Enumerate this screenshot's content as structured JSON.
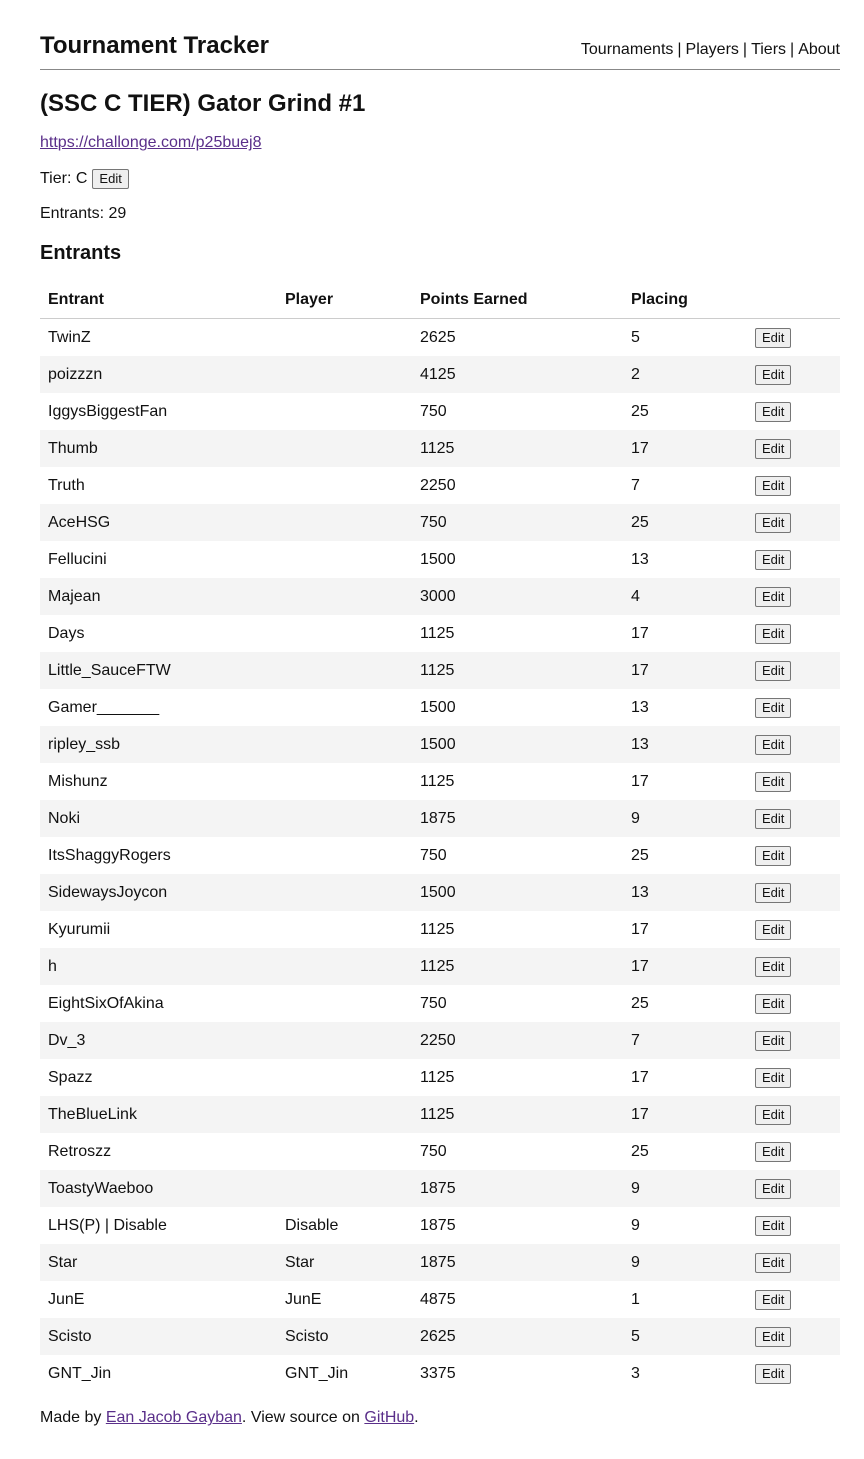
{
  "site": {
    "title": "Tournament Tracker",
    "nav": [
      "Tournaments",
      "Players",
      "Tiers",
      "About"
    ],
    "nav_separator": "|"
  },
  "tournament": {
    "title": "(SSC C TIER) Gator Grind #1",
    "url": "https://challonge.com/p25buej8",
    "tier_label": "Tier:",
    "tier_value": "C",
    "edit_label": "Edit",
    "entrants_label": "Entrants:",
    "entrants_count": "29"
  },
  "entrants_section": {
    "heading": "Entrants",
    "columns": [
      "Entrant",
      "Player",
      "Points Earned",
      "Placing",
      ""
    ],
    "edit_label": "Edit",
    "rows": [
      {
        "entrant": "TwinZ",
        "player": "",
        "points": "2625",
        "placing": "5"
      },
      {
        "entrant": "poizzzn",
        "player": "",
        "points": "4125",
        "placing": "2"
      },
      {
        "entrant": "IggysBiggestFan",
        "player": "",
        "points": "750",
        "placing": "25"
      },
      {
        "entrant": "Thumb",
        "player": "",
        "points": "1125",
        "placing": "17"
      },
      {
        "entrant": "Truth",
        "player": "",
        "points": "2250",
        "placing": "7"
      },
      {
        "entrant": "AceHSG",
        "player": "",
        "points": "750",
        "placing": "25"
      },
      {
        "entrant": "Fellucini",
        "player": "",
        "points": "1500",
        "placing": "13"
      },
      {
        "entrant": "Majean",
        "player": "",
        "points": "3000",
        "placing": "4"
      },
      {
        "entrant": "Days",
        "player": "",
        "points": "1125",
        "placing": "17"
      },
      {
        "entrant": "Little_SauceFTW",
        "player": "",
        "points": "1125",
        "placing": "17"
      },
      {
        "entrant": "Gamer_______",
        "player": "",
        "points": "1500",
        "placing": "13"
      },
      {
        "entrant": "ripley_ssb",
        "player": "",
        "points": "1500",
        "placing": "13"
      },
      {
        "entrant": "Mishunz",
        "player": "",
        "points": "1125",
        "placing": "17"
      },
      {
        "entrant": "Noki",
        "player": "",
        "points": "1875",
        "placing": "9"
      },
      {
        "entrant": "ItsShaggyRogers",
        "player": "",
        "points": "750",
        "placing": "25"
      },
      {
        "entrant": "SidewaysJoycon",
        "player": "",
        "points": "1500",
        "placing": "13"
      },
      {
        "entrant": "Kyurumii",
        "player": "",
        "points": "1125",
        "placing": "17"
      },
      {
        "entrant": "h",
        "player": "",
        "points": "1125",
        "placing": "17"
      },
      {
        "entrant": "EightSixOfAkina",
        "player": "",
        "points": "750",
        "placing": "25"
      },
      {
        "entrant": "Dv_3",
        "player": "",
        "points": "2250",
        "placing": "7"
      },
      {
        "entrant": "Spazz",
        "player": "",
        "points": "1125",
        "placing": "17"
      },
      {
        "entrant": "TheBlueLink",
        "player": "",
        "points": "1125",
        "placing": "17"
      },
      {
        "entrant": "Retroszz",
        "player": "",
        "points": "750",
        "placing": "25"
      },
      {
        "entrant": "ToastyWaeboo",
        "player": "",
        "points": "1875",
        "placing": "9"
      },
      {
        "entrant": "LHS(P) | Disable",
        "player": "Disable",
        "points": "1875",
        "placing": "9"
      },
      {
        "entrant": "Star",
        "player": "Star",
        "points": "1875",
        "placing": "9"
      },
      {
        "entrant": "JunE",
        "player": "JunE",
        "points": "4875",
        "placing": "1"
      },
      {
        "entrant": "Scisto",
        "player": "Scisto",
        "points": "2625",
        "placing": "5"
      },
      {
        "entrant": "GNT_Jin",
        "player": "GNT_Jin",
        "points": "3375",
        "placing": "3"
      }
    ]
  },
  "footer": {
    "made_by": "Made by",
    "author": "Ean Jacob Gayban",
    "view_source": ". View source on",
    "github": "GitHub",
    "end": "."
  },
  "colors": {
    "link": "#5a2f8a",
    "row_stripe": "#f4f4f4",
    "header_rule": "#888888"
  }
}
